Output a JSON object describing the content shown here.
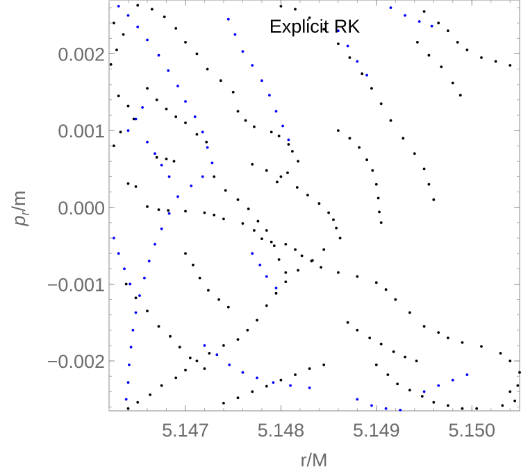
{
  "chart_data": {
    "type": "scatter",
    "title": "Explicit RK",
    "xlabel": "r/M",
    "ylabel_main": "p",
    "ylabel_sub": "r",
    "ylabel_tail": "/m",
    "xlim": [
      5.1462,
      5.1505
    ],
    "ylim": [
      -0.00265,
      0.0027
    ],
    "x_ticks": [
      {
        "value": 5.147,
        "label": "5.147"
      },
      {
        "value": 5.148,
        "label": "5.148"
      },
      {
        "value": 5.149,
        "label": "5.149"
      },
      {
        "value": 5.15,
        "label": "5.150"
      }
    ],
    "y_ticks": [
      {
        "value": 0.002,
        "label": "0.002"
      },
      {
        "value": 0.001,
        "label": "0.001"
      },
      {
        "value": 0.0,
        "label": "0.000"
      },
      {
        "value": -0.001,
        "label": "−0.001"
      },
      {
        "value": -0.002,
        "label": "−0.002"
      }
    ],
    "series": [
      {
        "color": "#000000",
        "points": [
          [
            5.1467,
            0.00065
          ],
          [
            5.1468,
            0.00063
          ],
          [
            5.14688,
            0.0006
          ],
          [
            5.1464,
            0.00031
          ],
          [
            5.14648,
            0.00027
          ],
          [
            5.1466,
            1e-05
          ],
          [
            5.14672,
            -3e-05
          ],
          [
            5.14682,
            -4e-05
          ],
          [
            5.147,
            -5e-05
          ],
          [
            5.1472,
            -7e-05
          ],
          [
            5.1473,
            -0.0001
          ],
          [
            5.1474,
            -0.00015
          ],
          [
            5.1476,
            -0.00021
          ],
          [
            5.14772,
            -0.0003
          ],
          [
            5.1478,
            -0.00041
          ],
          [
            5.1479,
            -0.00045
          ],
          [
            5.14805,
            -0.00048
          ],
          [
            5.14815,
            -0.00055
          ],
          [
            5.14822,
            -0.00063
          ],
          [
            5.14832,
            -0.0007
          ],
          [
            5.14842,
            -0.00078
          ],
          [
            5.1486,
            -0.00085
          ],
          [
            5.1488,
            -0.0009
          ],
          [
            5.149,
            -0.00098
          ],
          [
            5.1491,
            -0.00107
          ],
          [
            5.1492,
            -0.0012
          ],
          [
            5.14935,
            -0.00137
          ],
          [
            5.1495,
            -0.00155
          ],
          [
            5.14965,
            -0.00163
          ],
          [
            5.14975,
            -0.0017
          ],
          [
            5.1499,
            -0.00176
          ],
          [
            5.1501,
            -0.00181
          ],
          [
            5.1503,
            -0.0019
          ],
          [
            5.1504,
            -0.002
          ],
          [
            5.1505,
            -0.00215
          ],
          [
            5.1477,
            0.00056
          ],
          [
            5.14785,
            0.00048
          ],
          [
            5.148,
            0.0004
          ],
          [
            5.14817,
            0.00026
          ],
          [
            5.14828,
            0.00016
          ],
          [
            5.1484,
            5e-05
          ],
          [
            5.1485,
            -7e-05
          ],
          [
            5.14855,
            -0.00016
          ],
          [
            5.14858,
            -0.00027
          ],
          [
            5.14862,
            -0.0004
          ],
          [
            5.14845,
            -0.00055
          ],
          [
            5.14833,
            -0.00069
          ],
          [
            5.14818,
            -0.00082
          ],
          [
            5.14805,
            -0.00097
          ],
          [
            5.14795,
            -0.00112
          ],
          [
            5.14785,
            -0.00128
          ],
          [
            5.14775,
            -0.00147
          ],
          [
            5.14765,
            -0.0016
          ],
          [
            5.14755,
            -0.00172
          ],
          [
            5.1474,
            -0.0018
          ],
          [
            5.14725,
            -0.0019
          ],
          [
            5.14712,
            -0.002
          ],
          [
            5.147,
            -0.00212
          ],
          [
            5.1469,
            -0.00222
          ],
          [
            5.14675,
            -0.00232
          ],
          [
            5.14663,
            -0.00244
          ],
          [
            5.1465,
            -0.00254
          ],
          [
            5.1464,
            -0.00262
          ],
          [
            5.14755,
            0.00125
          ],
          [
            5.14763,
            0.00113
          ],
          [
            5.14772,
            0.00105
          ],
          [
            5.1479,
            0.00098
          ],
          [
            5.14798,
            0.00093
          ],
          [
            5.14808,
            0.00082
          ],
          [
            5.14812,
            0.00073
          ],
          [
            5.14818,
            0.0006
          ],
          [
            5.14807,
            0.00045
          ],
          [
            5.14796,
            0.00033
          ],
          [
            5.1475,
            0.0015
          ],
          [
            5.14737,
            0.00165
          ],
          [
            5.14723,
            0.0018
          ],
          [
            5.14712,
            0.002
          ],
          [
            5.147,
            0.00215
          ],
          [
            5.1469,
            0.00233
          ],
          [
            5.14678,
            0.00248
          ],
          [
            5.14665,
            0.00258
          ],
          [
            5.1465,
            0.00263
          ],
          [
            5.148,
            0.00262
          ],
          [
            5.14815,
            0.00258
          ],
          [
            5.1483,
            0.00247
          ],
          [
            5.14845,
            0.00232
          ],
          [
            5.1486,
            0.00213
          ],
          [
            5.14872,
            0.00195
          ],
          [
            5.14885,
            0.00174
          ],
          [
            5.14895,
            0.00155
          ],
          [
            5.14905,
            0.00135
          ],
          [
            5.14915,
            0.00113
          ],
          [
            5.14928,
            0.0009
          ],
          [
            5.1494,
            0.0007
          ],
          [
            5.1495,
            0.0005
          ],
          [
            5.14955,
            0.0003
          ],
          [
            5.1496,
            0.0001
          ],
          [
            5.14943,
            0.00215
          ],
          [
            5.14955,
            0.00198
          ],
          [
            5.14968,
            0.00183
          ],
          [
            5.1498,
            0.00162
          ],
          [
            5.14988,
            0.00146
          ],
          [
            5.1463,
            0.00145
          ],
          [
            5.1464,
            0.00132
          ],
          [
            5.14646,
            0.00115
          ],
          [
            5.14632,
            0.00098
          ],
          [
            5.14625,
            0.0008
          ],
          [
            5.14625,
            0.0024
          ],
          [
            5.14635,
            0.00225
          ],
          [
            5.14628,
            0.00205
          ],
          [
            5.14622,
            0.00186
          ],
          [
            5.14638,
            -0.001
          ],
          [
            5.14648,
            -0.00118
          ],
          [
            5.1466,
            -0.00135
          ],
          [
            5.14672,
            -0.00155
          ],
          [
            5.14684,
            -0.00168
          ],
          [
            5.14694,
            -0.00182
          ],
          [
            5.14705,
            -0.00196
          ],
          [
            5.1472,
            -0.0021
          ],
          [
            5.1473,
            0.0004
          ],
          [
            5.14742,
            0.00022
          ],
          [
            5.14755,
            0.0001
          ],
          [
            5.14766,
            -2e-05
          ],
          [
            5.14776,
            -0.00018
          ],
          [
            5.14785,
            -0.0003
          ],
          [
            5.14793,
            -0.0005
          ],
          [
            5.14798,
            -0.00068
          ],
          [
            5.14805,
            -0.00085
          ],
          [
            5.149,
            -0.00205
          ],
          [
            5.14912,
            -0.00218
          ],
          [
            5.14922,
            -0.0023
          ],
          [
            5.14935,
            -0.00238
          ],
          [
            5.14948,
            -0.00246
          ],
          [
            5.1496,
            -0.00254
          ],
          [
            5.14975,
            -0.00258
          ],
          [
            5.1499,
            -0.00262
          ],
          [
            5.15005,
            -0.00262
          ],
          [
            5.1487,
            -0.0015
          ],
          [
            5.1488,
            -0.0016
          ],
          [
            5.14893,
            -0.0017
          ],
          [
            5.14905,
            -0.00178
          ],
          [
            5.14918,
            -0.00188
          ],
          [
            5.1493,
            -0.00195
          ],
          [
            5.14942,
            -0.002
          ],
          [
            5.1466,
            0.00155
          ],
          [
            5.1467,
            0.0014
          ],
          [
            5.1468,
            0.00128
          ],
          [
            5.1469,
            0.00118
          ],
          [
            5.147,
            0.0011
          ],
          [
            5.14712,
            0.00095
          ],
          [
            5.14722,
            0.00085
          ],
          [
            5.1495,
            0.00255
          ],
          [
            5.14965,
            0.0024
          ],
          [
            5.14975,
            0.0023
          ],
          [
            5.14985,
            0.00215
          ],
          [
            5.14995,
            0.00205
          ],
          [
            5.1501,
            0.00195
          ],
          [
            5.15025,
            0.0019
          ],
          [
            5.1504,
            0.00185
          ],
          [
            5.15052,
            0.00172
          ],
          [
            5.1486,
            0.001
          ],
          [
            5.14872,
            0.0009
          ],
          [
            5.14882,
            0.00078
          ],
          [
            5.1489,
            0.00062
          ],
          [
            5.14896,
            0.00048
          ],
          [
            5.149,
            0.0003
          ],
          [
            5.14902,
            0.00012
          ],
          [
            5.14903,
            -6e-05
          ],
          [
            5.14905,
            -0.0002
          ],
          [
            5.1474,
            -0.00255
          ],
          [
            5.14755,
            -0.00248
          ],
          [
            5.1477,
            -0.0024
          ],
          [
            5.14785,
            -0.00233
          ],
          [
            5.148,
            -0.00225
          ],
          [
            5.14815,
            -0.00218
          ],
          [
            5.1483,
            -0.0021
          ],
          [
            5.14845,
            -0.00205
          ],
          [
            5.147,
            -0.0006
          ],
          [
            5.14708,
            -0.00075
          ],
          [
            5.14715,
            -0.00092
          ],
          [
            5.14724,
            -0.00108
          ],
          [
            5.14735,
            -0.0012
          ],
          [
            5.14745,
            -0.0013
          ],
          [
            5.1504,
            -0.0024
          ],
          [
            5.15045,
            -0.00252
          ],
          [
            5.15032,
            -0.00258
          ],
          [
            5.15048,
            -0.00232
          ]
        ]
      },
      {
        "color": "#0000ff",
        "points": [
          [
            5.1463,
            0.00262
          ],
          [
            5.1464,
            0.0025
          ],
          [
            5.1465,
            0.00235
          ],
          [
            5.1466,
            0.00218
          ],
          [
            5.14672,
            0.00198
          ],
          [
            5.14682,
            0.00178
          ],
          [
            5.14692,
            0.00158
          ],
          [
            5.147,
            0.00138
          ],
          [
            5.1471,
            0.00118
          ],
          [
            5.14718,
            0.00098
          ],
          [
            5.14723,
            0.00078
          ],
          [
            5.14728,
            0.00058
          ],
          [
            5.14718,
            0.0004
          ],
          [
            5.14706,
            0.00028
          ],
          [
            5.14692,
            0.00014
          ],
          [
            5.14683,
            -8e-05
          ],
          [
            5.14675,
            -0.00028
          ],
          [
            5.14668,
            -0.00048
          ],
          [
            5.14662,
            -0.0007
          ],
          [
            5.14657,
            -0.00092
          ],
          [
            5.14652,
            -0.00115
          ],
          [
            5.14648,
            -0.00137
          ],
          [
            5.14645,
            -0.0016
          ],
          [
            5.14643,
            -0.00182
          ],
          [
            5.14641,
            -0.00205
          ],
          [
            5.1464,
            -0.00228
          ],
          [
            5.14638,
            -0.0025
          ],
          [
            5.14745,
            0.00245
          ],
          [
            5.14752,
            0.00225
          ],
          [
            5.1476,
            0.00203
          ],
          [
            5.1477,
            0.00185
          ],
          [
            5.1478,
            0.00165
          ],
          [
            5.14788,
            0.00146
          ],
          [
            5.14795,
            0.00125
          ],
          [
            5.14802,
            0.00106
          ],
          [
            5.14808,
            0.00088
          ],
          [
            5.14625,
            -0.0004
          ],
          [
            5.1463,
            -0.0006
          ],
          [
            5.14636,
            -0.0008
          ],
          [
            5.14642,
            -0.001
          ],
          [
            5.1472,
            -0.0018
          ],
          [
            5.14733,
            -0.00192
          ],
          [
            5.14746,
            -0.00205
          ],
          [
            5.1476,
            -0.00215
          ],
          [
            5.14775,
            -0.00222
          ],
          [
            5.14792,
            -0.00228
          ],
          [
            5.1481,
            -0.00232
          ],
          [
            5.1483,
            -0.00235
          ],
          [
            5.1486,
            0.0023
          ],
          [
            5.1487,
            0.0021
          ],
          [
            5.1488,
            0.0019
          ],
          [
            5.1489,
            0.00172
          ],
          [
            5.14915,
            0.0026
          ],
          [
            5.1493,
            0.0025
          ],
          [
            5.14945,
            0.00242
          ],
          [
            5.14958,
            0.00236
          ],
          [
            5.1488,
            -0.0025
          ],
          [
            5.14895,
            -0.00258
          ],
          [
            5.1491,
            -0.00262
          ],
          [
            5.14925,
            -0.00264
          ],
          [
            5.1495,
            -0.0024
          ],
          [
            5.14965,
            -0.00232
          ],
          [
            5.1498,
            -0.00225
          ],
          [
            5.14995,
            -0.00218
          ],
          [
            5.1466,
            0.00085
          ],
          [
            5.14668,
            0.0007
          ],
          [
            5.14675,
            0.00055
          ],
          [
            5.14683,
            0.0004
          ],
          [
            5.1477,
            -0.0006
          ],
          [
            5.14778,
            -0.00075
          ],
          [
            5.14785,
            -0.0009
          ],
          [
            5.14795,
            -0.00105
          ],
          [
            5.1464,
            0.001
          ],
          [
            5.14648,
            0.00115
          ],
          [
            5.14655,
            0.0013
          ]
        ]
      }
    ]
  }
}
